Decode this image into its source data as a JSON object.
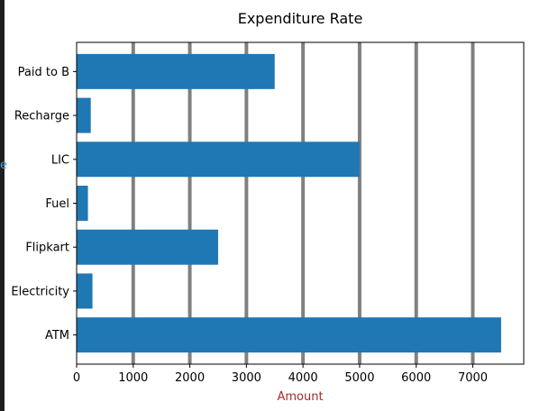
{
  "window": {
    "edge_label": "e"
  },
  "chart_data": {
    "type": "bar",
    "orientation": "horizontal",
    "title": "Expenditure Rate",
    "xlabel": "Amount",
    "ylabel": "",
    "categories": [
      "Paid to B",
      "Recharge",
      "LIC",
      "Fuel",
      "Flipkart",
      "Electricity",
      "ATM"
    ],
    "values": [
      3500,
      250,
      5000,
      200,
      2500,
      280,
      7500
    ],
    "xlim": [
      0,
      7900
    ],
    "xticks": [
      0,
      1000,
      2000,
      3000,
      4000,
      5000,
      6000,
      7000
    ],
    "grid": "x",
    "colors": {
      "bar": "#1f77b4",
      "grid": "#808080",
      "xlabel": "#a52a2a",
      "edge_label": "#4f9bd6"
    }
  }
}
